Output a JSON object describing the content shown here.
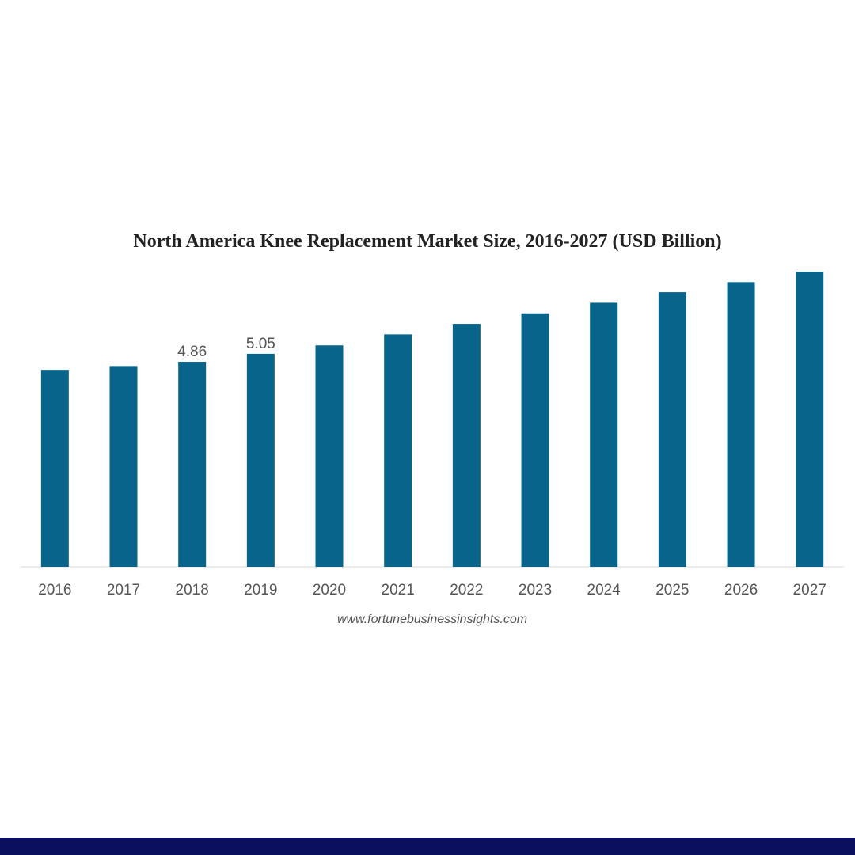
{
  "chart_data": {
    "type": "bar",
    "title": "North America Knee Replacement Market Size, 2016-2027 (USD Billion)",
    "xlabel": "",
    "ylabel": "",
    "categories": [
      "2016",
      "2017",
      "2018",
      "2019",
      "2020",
      "2021",
      "2022",
      "2023",
      "2024",
      "2025",
      "2026",
      "2027"
    ],
    "values": [
      4.67,
      4.76,
      4.86,
      5.05,
      5.25,
      5.51,
      5.76,
      6.01,
      6.26,
      6.51,
      6.75,
      7.0
    ],
    "data_labels": [
      "",
      "",
      "4.86",
      "5.05",
      "",
      "",
      "",
      "",
      "",
      "",
      "",
      ""
    ],
    "ylim": [
      0,
      7.0
    ],
    "grid": false,
    "legend": "none",
    "bar_color": "#08648a",
    "source": "www.fortunebusinessinsights.com"
  },
  "colors": {
    "bar": "#08648a",
    "footer_band": "#0a0f5e"
  }
}
